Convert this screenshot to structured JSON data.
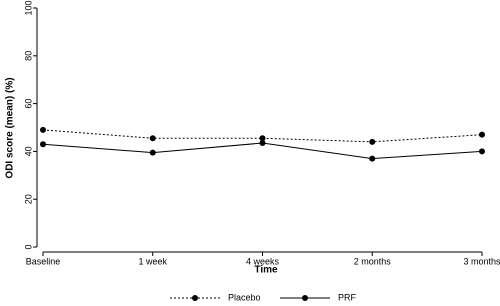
{
  "chart_data": {
    "type": "line",
    "x_label": "Time",
    "y_label": "ODI score (mean) (%)",
    "categories": [
      "Baseline",
      "1 week",
      "4 weeks",
      "2 months",
      "3 months"
    ],
    "series": [
      {
        "name": "Placebo",
        "color": "#000000",
        "line_style": "dotted",
        "values": [
          49,
          45.5,
          45.5,
          44,
          47
        ]
      },
      {
        "name": "PRF",
        "color": "#000000",
        "line_style": "solid",
        "values": [
          43,
          39.5,
          43.5,
          37,
          40
        ]
      }
    ],
    "ylim": [
      0,
      100
    ],
    "yticks": [
      0,
      20,
      40,
      60,
      80,
      100
    ],
    "grid": false,
    "legend": "bottom"
  }
}
